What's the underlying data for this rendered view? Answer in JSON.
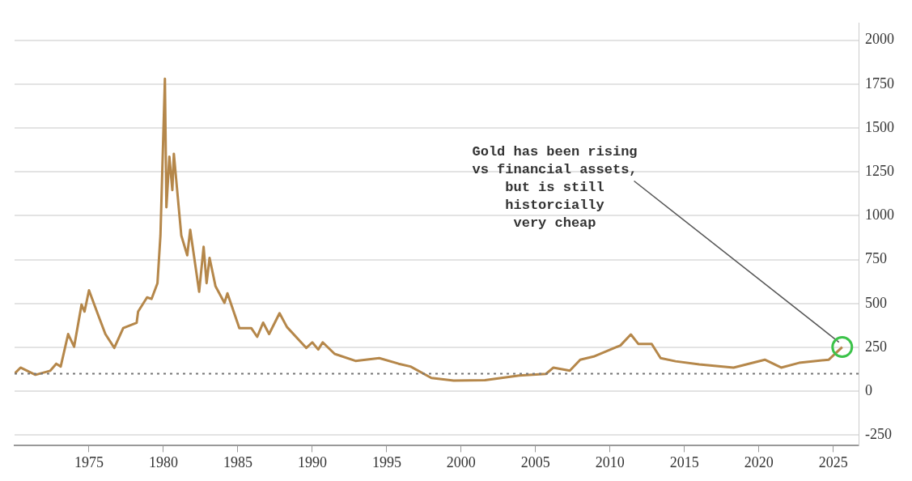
{
  "chart_data": {
    "type": "line",
    "x": [
      1970.0,
      1970.4,
      1971.4,
      1972.4,
      1972.8,
      1973.1,
      1973.6,
      1974.0,
      1974.5,
      1974.7,
      1975.0,
      1975.6,
      1976.1,
      1976.7,
      1977.3,
      1978.2,
      1978.3,
      1978.9,
      1979.2,
      1979.6,
      1979.8,
      1980.1,
      1980.2,
      1980.4,
      1980.6,
      1980.7,
      1981.2,
      1981.6,
      1981.8,
      1982.4,
      1982.7,
      1982.9,
      1983.1,
      1983.5,
      1984.1,
      1984.3,
      1985.1,
      1985.9,
      1986.3,
      1986.7,
      1987.1,
      1987.8,
      1988.3,
      1989.6,
      1990.0,
      1990.4,
      1990.7,
      1991.5,
      1992.9,
      1994.5,
      1995.8,
      1996.6,
      1998.0,
      1999.5,
      2001.6,
      2003.9,
      2005.7,
      2006.2,
      2007.3,
      2008.0,
      2008.9,
      2010.7,
      2011.4,
      2011.9,
      2012.8,
      2013.4,
      2014.4,
      2016.0,
      2018.3,
      2020.4,
      2021.5,
      2022.7,
      2024.7,
      2025.6
    ],
    "series": [
      {
        "color": "#b5874a",
        "values": [
          100,
          135,
          94,
          117,
          157,
          141,
          326,
          254,
          494,
          454,
          575,
          438,
          326,
          247,
          360,
          390,
          454,
          535,
          526,
          616,
          888,
          1780,
          1048,
          1337,
          1146,
          1353,
          888,
          775,
          920,
          567,
          823,
          616,
          760,
          598,
          504,
          558,
          360,
          360,
          310,
          391,
          326,
          445,
          366,
          247,
          279,
          238,
          279,
          213,
          173,
          189,
          157,
          141,
          76,
          61,
          63,
          90,
          99,
          135,
          117,
          180,
          198,
          261,
          324,
          270,
          270,
          189,
          171,
          153,
          135,
          180,
          135,
          162,
          180,
          252
        ]
      }
    ],
    "xlim": [
      1970,
      2026.7
    ],
    "xticks": [
      1975,
      1980,
      1985,
      1990,
      1995,
      2000,
      2005,
      2010,
      2015,
      2020,
      2025
    ],
    "ylim": [
      -310,
      2100
    ],
    "yticks": [
      -250,
      0,
      250,
      500,
      750,
      1000,
      1250,
      1500,
      1750,
      2000
    ],
    "grid": "y",
    "legend": false,
    "marker": "none",
    "line_style": "solid",
    "ref_lines": [
      {
        "axis": "y",
        "value": 100,
        "color": "#777777",
        "line_style": "dotted"
      }
    ],
    "annotations": [
      {
        "text": "Gold has been rising\nvs financial assets,\nbut is still\nhistorcially\nvery cheap",
        "x": 2025.6,
        "y": 252
      }
    ]
  }
}
